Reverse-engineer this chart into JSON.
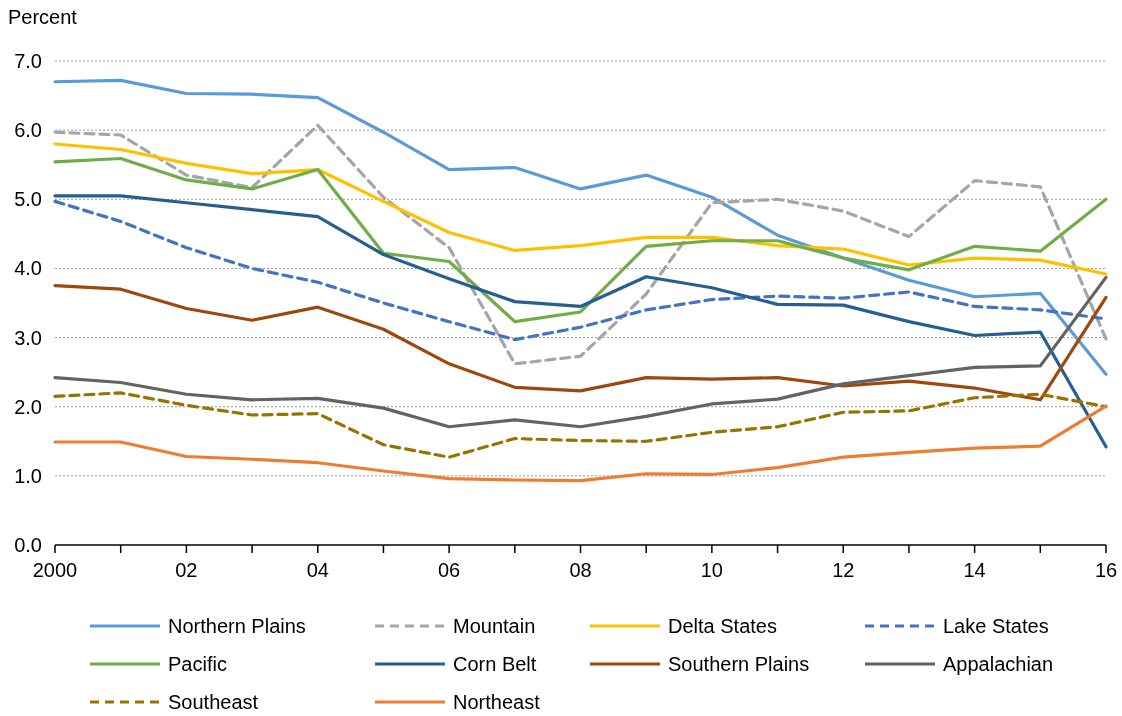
{
  "chart_data": {
    "type": "line",
    "ylabel": "Percent",
    "x": [
      2000,
      2001,
      2002,
      2003,
      2004,
      2005,
      2006,
      2007,
      2008,
      2009,
      2010,
      2011,
      2012,
      2013,
      2014,
      2015,
      2016
    ],
    "xlim": [
      2000,
      2016
    ],
    "xticks": [
      {
        "value": 2000,
        "label": "2000"
      },
      {
        "value": 2001,
        "label": null
      },
      {
        "value": 2002,
        "label": "02"
      },
      {
        "value": 2003,
        "label": null
      },
      {
        "value": 2004,
        "label": "04"
      },
      {
        "value": 2005,
        "label": null
      },
      {
        "value": 2006,
        "label": "06"
      },
      {
        "value": 2007,
        "label": null
      },
      {
        "value": 2008,
        "label": "08"
      },
      {
        "value": 2009,
        "label": null
      },
      {
        "value": 2010,
        "label": "10"
      },
      {
        "value": 2011,
        "label": null
      },
      {
        "value": 2012,
        "label": "12"
      },
      {
        "value": 2013,
        "label": null
      },
      {
        "value": 2014,
        "label": "14"
      },
      {
        "value": 2015,
        "label": null
      },
      {
        "value": 2016,
        "label": "16"
      }
    ],
    "ylim": [
      0,
      7
    ],
    "yticks": [
      {
        "value": 0,
        "label": "0.0"
      },
      {
        "value": 1,
        "label": "1.0"
      },
      {
        "value": 2,
        "label": "2.0"
      },
      {
        "value": 3,
        "label": "3.0"
      },
      {
        "value": 4,
        "label": "4.0"
      },
      {
        "value": 5,
        "label": "5.0"
      },
      {
        "value": 6,
        "label": "6.0"
      },
      {
        "value": 7,
        "label": "7.0"
      }
    ],
    "grid": "y",
    "legend": "bottom",
    "marker": "none",
    "series": [
      {
        "name": "Northern Plains",
        "color": "#5b9bd5",
        "values": [
          6.7,
          6.72,
          6.53,
          6.52,
          6.47,
          5.97,
          5.43,
          5.46,
          5.15,
          5.35,
          5.03,
          4.48,
          4.15,
          3.83,
          3.59,
          3.64,
          2.47
        ]
      },
      {
        "name": "Mountain",
        "color": "#a5a5a5",
        "line_style": "dashed",
        "values": [
          5.97,
          5.93,
          5.35,
          5.17,
          6.07,
          5.03,
          4.3,
          2.62,
          2.73,
          3.63,
          4.95,
          5.0,
          4.83,
          4.46,
          5.27,
          5.18,
          2.98
        ]
      },
      {
        "name": "Delta States",
        "color": "#ffc000",
        "values": [
          5.8,
          5.72,
          5.52,
          5.37,
          5.43,
          4.97,
          4.52,
          4.26,
          4.33,
          4.45,
          4.45,
          4.33,
          4.28,
          4.05,
          4.15,
          4.12,
          3.92
        ]
      },
      {
        "name": "Lake States",
        "color": "#4472c4",
        "line_style": "dashed",
        "values": [
          4.97,
          4.68,
          4.3,
          4.0,
          3.8,
          3.5,
          3.23,
          2.97,
          3.15,
          3.4,
          3.55,
          3.6,
          3.57,
          3.66,
          3.45,
          3.4,
          3.27
        ]
      },
      {
        "name": "Pacific",
        "color": "#70ad47",
        "values": [
          5.54,
          5.59,
          5.28,
          5.15,
          5.43,
          4.22,
          4.1,
          3.23,
          3.37,
          4.32,
          4.4,
          4.4,
          4.15,
          3.98,
          4.32,
          4.25,
          5.0
        ]
      },
      {
        "name": "Corn Belt",
        "color": "#255e91",
        "values": [
          5.05,
          5.05,
          4.95,
          4.85,
          4.75,
          4.2,
          3.85,
          3.52,
          3.45,
          3.88,
          3.72,
          3.48,
          3.47,
          3.23,
          3.03,
          3.08,
          1.42
        ]
      },
      {
        "name": "Southern Plains",
        "color": "#9e480e",
        "values": [
          3.75,
          3.7,
          3.42,
          3.25,
          3.44,
          3.12,
          2.62,
          2.28,
          2.23,
          2.42,
          2.4,
          2.42,
          2.3,
          2.37,
          2.27,
          2.1,
          3.58
        ]
      },
      {
        "name": "Appalachian",
        "color": "#636363",
        "values": [
          2.42,
          2.35,
          2.18,
          2.1,
          2.12,
          1.98,
          1.71,
          1.81,
          1.71,
          1.86,
          2.04,
          2.11,
          2.33,
          2.45,
          2.57,
          2.59,
          3.87
        ]
      },
      {
        "name": "Southeast",
        "color": "#997300",
        "line_style": "dashed",
        "values": [
          2.15,
          2.2,
          2.02,
          1.88,
          1.9,
          1.45,
          1.27,
          1.54,
          1.51,
          1.5,
          1.63,
          1.71,
          1.92,
          1.94,
          2.13,
          2.18,
          2.0
        ]
      },
      {
        "name": "Northeast",
        "color": "#ed7d31",
        "values": [
          1.49,
          1.49,
          1.28,
          1.24,
          1.19,
          1.07,
          0.96,
          0.94,
          0.93,
          1.03,
          1.02,
          1.12,
          1.27,
          1.34,
          1.4,
          1.43,
          2.01
        ]
      }
    ]
  }
}
